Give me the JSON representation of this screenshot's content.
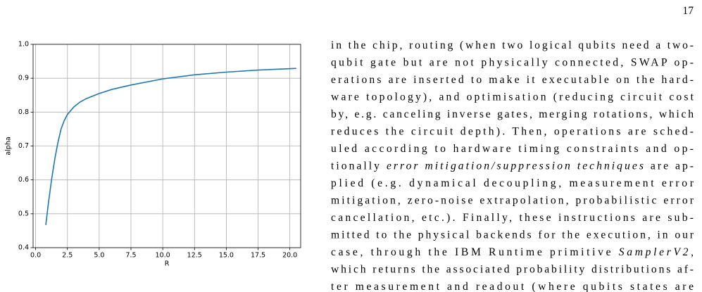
{
  "page_number": "17",
  "chart_data": {
    "type": "line",
    "x_label": "R",
    "y_label": "alpha",
    "x": [
      0.8,
      1.0,
      1.25,
      1.5,
      1.75,
      2.0,
      2.25,
      2.5,
      3.0,
      3.5,
      4.0,
      5.0,
      6.0,
      7.5,
      10.0,
      12.5,
      15.0,
      17.5,
      20.5
    ],
    "values": [
      0.467,
      0.53,
      0.6,
      0.66,
      0.71,
      0.75,
      0.775,
      0.793,
      0.815,
      0.83,
      0.84,
      0.855,
      0.867,
      0.88,
      0.898,
      0.91,
      0.918,
      0.924,
      0.929
    ],
    "color": "#1f77b4",
    "xlim": [
      -0.2,
      20.85
    ],
    "ylim": [
      0.4,
      1.0
    ],
    "xticks": [
      {
        "value": 0,
        "label": "0.0"
      },
      2.5,
      {
        "value": 5,
        "label": "5.0"
      },
      7.5,
      {
        "value": 10,
        "label": "10.0"
      },
      12.5,
      {
        "value": 15,
        "label": "15.0"
      },
      17.5,
      {
        "value": 20,
        "label": "20.0"
      }
    ],
    "yticks": [
      0.4,
      0.5,
      0.6,
      0.7,
      0.8,
      0.9,
      {
        "value": 1,
        "label": "1.0"
      }
    ],
    "grid": true
  },
  "text": {
    "lines": [
      [
        "in the chip, routing (when two logical qubits need a two-"
      ],
      [
        "qubit gate but are not physically connected, SWAP op-"
      ],
      [
        "erations are inserted to make it executable on the hard-"
      ],
      [
        "ware topology), and optimisation (reducing circuit cost"
      ],
      [
        "by, e.g. canceling inverse gates, merging rotations, which"
      ],
      [
        "reduces the circuit depth). Then, operations are sched-"
      ],
      [
        "uled according to hardware timing constraints and op-"
      ],
      [
        "tionally ",
        {
          "text": "error mitigation/suppression techniques",
          "style": "italic"
        },
        " are ap-"
      ],
      [
        "plied (e.g.  dynamical decoupling, measurement error"
      ],
      [
        "mitigation, zero-noise extrapolation, probabilistic error"
      ],
      [
        "cancellation, etc.).  Finally, these instructions are sub-"
      ],
      [
        "mitted to the physical backends for the execution, in our"
      ],
      [
        "case, through the IBM Runtime primitive ",
        {
          "text": "SamplerV2",
          "style": "italic"
        },
        ","
      ],
      [
        "which returns the associated probability distributions af-"
      ],
      [
        "ter measurement and readout (where qubits states are"
      ]
    ]
  }
}
